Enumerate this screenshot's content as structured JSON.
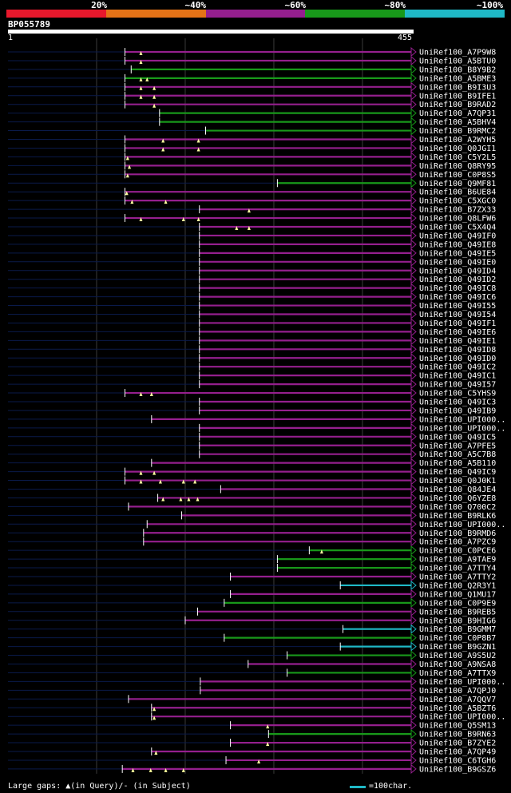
{
  "header": {
    "query_id": "BP055789",
    "ruler_start": "1",
    "ruler_end": "455",
    "legend": [
      {
        "label": "",
        "color": "#e8182c"
      },
      {
        "label": "20%",
        "color": "#e57317"
      },
      {
        "label": "~40%",
        "color": "#951f8e"
      },
      {
        "label": "~60%",
        "color": "#18981a"
      },
      {
        "label": "~80%",
        "color": "#1fb8c6"
      }
    ],
    "legend_labels": [
      "20%",
      "~40%",
      "~60%",
      "~80%",
      "~100%"
    ]
  },
  "footer": {
    "gaps_text": "Large gaps: ▲(in Query)/- (in Subject)",
    "scale_text": "=100char."
  },
  "chart_data": {
    "type": "alignment",
    "query_length": 455,
    "colors": {
      "purple": "#951f8e",
      "green": "#18981a",
      "cyan": "#1fb8c6",
      "navy": "#0a1a4a"
    },
    "hits": [
      {
        "name": "UniRef100_A7P9W8",
        "start": 132,
        "color": "purple",
        "gaps": [
          150
        ]
      },
      {
        "name": "UniRef100_A5BTU0",
        "start": 132,
        "color": "purple",
        "gaps": [
          150
        ]
      },
      {
        "name": "UniRef100_B8Y9B2",
        "start": 139,
        "color": "green",
        "gaps": []
      },
      {
        "name": "UniRef100_A5BME3",
        "start": 132,
        "color": "green",
        "gaps": [
          150,
          157
        ]
      },
      {
        "name": "UniRef100_B9I3U3",
        "start": 132,
        "color": "purple",
        "gaps": [
          150,
          165
        ]
      },
      {
        "name": "UniRef100_B9IFE1",
        "start": 132,
        "color": "purple",
        "gaps": [
          150,
          165
        ]
      },
      {
        "name": "UniRef100_B9RAD2",
        "start": 132,
        "color": "purple",
        "gaps": [
          165
        ]
      },
      {
        "name": "UniRef100_A7QP31",
        "start": 171,
        "color": "green",
        "gaps": []
      },
      {
        "name": "UniRef100_A5BHV4",
        "start": 171,
        "color": "green",
        "gaps": []
      },
      {
        "name": "UniRef100_B9RMC2",
        "start": 223,
        "color": "green",
        "gaps": []
      },
      {
        "name": "UniRef100_A2WYH5",
        "start": 132,
        "color": "purple",
        "gaps": [
          175,
          215
        ]
      },
      {
        "name": "UniRef100_Q0JGI1",
        "start": 132,
        "color": "purple",
        "gaps": [
          175,
          215
        ]
      },
      {
        "name": "UniRef100_C5Y2L5",
        "start": 132,
        "color": "purple",
        "gaps": [
          135
        ]
      },
      {
        "name": "UniRef100_Q8RY95",
        "start": 132,
        "color": "purple",
        "gaps": [
          137
        ]
      },
      {
        "name": "UniRef100_C0P8S5",
        "start": 132,
        "color": "purple",
        "gaps": [
          135
        ]
      },
      {
        "name": "UniRef100_Q9MF81",
        "start": 304,
        "color": "green",
        "gaps": []
      },
      {
        "name": "UniRef100_B6UE84",
        "start": 132,
        "color": "purple",
        "gaps": [
          134
        ]
      },
      {
        "name": "UniRef100_C5XGC0",
        "start": 132,
        "color": "purple",
        "gaps": [
          140,
          178
        ]
      },
      {
        "name": "UniRef100_B7ZX33",
        "start": 216,
        "color": "purple",
        "gaps": [
          272
        ]
      },
      {
        "name": "UniRef100_Q8LFW6",
        "start": 132,
        "color": "purple",
        "gaps": [
          150,
          198,
          215
        ]
      },
      {
        "name": "UniRef100_C5X4Q4",
        "start": 216,
        "color": "purple",
        "gaps": [
          258,
          272
        ]
      },
      {
        "name": "UniRef100_Q49IF0",
        "start": 216,
        "color": "purple",
        "gaps": []
      },
      {
        "name": "UniRef100_Q49IE8",
        "start": 216,
        "color": "purple",
        "gaps": []
      },
      {
        "name": "UniRef100_Q49IE5",
        "start": 216,
        "color": "purple",
        "gaps": []
      },
      {
        "name": "UniRef100_Q49IE0",
        "start": 216,
        "color": "purple",
        "gaps": []
      },
      {
        "name": "UniRef100_Q49ID4",
        "start": 216,
        "color": "purple",
        "gaps": []
      },
      {
        "name": "UniRef100_Q49ID2",
        "start": 216,
        "color": "purple",
        "gaps": []
      },
      {
        "name": "UniRef100_Q49IC8",
        "start": 216,
        "color": "purple",
        "gaps": []
      },
      {
        "name": "UniRef100_Q49IC6",
        "start": 216,
        "color": "purple",
        "gaps": []
      },
      {
        "name": "UniRef100_Q49I55",
        "start": 216,
        "color": "purple",
        "gaps": []
      },
      {
        "name": "UniRef100_Q49I54",
        "start": 216,
        "color": "purple",
        "gaps": []
      },
      {
        "name": "UniRef100_Q49IF1",
        "start": 216,
        "color": "purple",
        "gaps": []
      },
      {
        "name": "UniRef100_Q49IE6",
        "start": 216,
        "color": "purple",
        "gaps": []
      },
      {
        "name": "UniRef100_Q49IE1",
        "start": 216,
        "color": "purple",
        "gaps": []
      },
      {
        "name": "UniRef100_Q49ID8",
        "start": 216,
        "color": "purple",
        "gaps": []
      },
      {
        "name": "UniRef100_Q49ID0",
        "start": 216,
        "color": "purple",
        "gaps": []
      },
      {
        "name": "UniRef100_Q49IC2",
        "start": 216,
        "color": "purple",
        "gaps": []
      },
      {
        "name": "UniRef100_Q49IC1",
        "start": 216,
        "color": "purple",
        "gaps": []
      },
      {
        "name": "UniRef100_Q49I57",
        "start": 216,
        "color": "purple",
        "gaps": []
      },
      {
        "name": "UniRef100_C5YHS9",
        "start": 132,
        "color": "purple",
        "gaps": [
          150,
          162
        ]
      },
      {
        "name": "UniRef100_Q49IC3",
        "start": 216,
        "color": "purple",
        "gaps": []
      },
      {
        "name": "UniRef100_Q49IB9",
        "start": 216,
        "color": "purple",
        "gaps": []
      },
      {
        "name": "UniRef100_UPI000..",
        "start": 162,
        "color": "purple",
        "gaps": []
      },
      {
        "name": "UniRef100_UPI000..",
        "start": 216,
        "color": "purple",
        "gaps": []
      },
      {
        "name": "UniRef100_Q49IC5",
        "start": 216,
        "color": "purple",
        "gaps": []
      },
      {
        "name": "UniRef100_A7PFE5",
        "start": 216,
        "color": "purple",
        "gaps": []
      },
      {
        "name": "UniRef100_A5C7B8",
        "start": 216,
        "color": "purple",
        "gaps": []
      },
      {
        "name": "UniRef100_A5B110",
        "start": 162,
        "color": "purple",
        "gaps": []
      },
      {
        "name": "UniRef100_Q49IC9",
        "start": 132,
        "color": "purple",
        "gaps": [
          150,
          165
        ]
      },
      {
        "name": "UniRef100_Q0J0K1",
        "start": 132,
        "color": "purple",
        "gaps": [
          150,
          172,
          198,
          211
        ]
      },
      {
        "name": "UniRef100_Q84JE4",
        "start": 240,
        "color": "purple",
        "gaps": []
      },
      {
        "name": "UniRef100_Q6YZE8",
        "start": 169,
        "color": "purple",
        "gaps": [
          175,
          195,
          204,
          214
        ]
      },
      {
        "name": "UniRef100_Q700C2",
        "start": 136,
        "color": "purple",
        "gaps": []
      },
      {
        "name": "UniRef100_B9RLK6",
        "start": 196,
        "color": "purple",
        "gaps": []
      },
      {
        "name": "UniRef100_UPI000..",
        "start": 157,
        "color": "purple",
        "gaps": []
      },
      {
        "name": "UniRef100_B9RMD6",
        "start": 153,
        "color": "purple",
        "gaps": []
      },
      {
        "name": "UniRef100_A7PZC9",
        "start": 153,
        "color": "purple",
        "gaps": []
      },
      {
        "name": "UniRef100_C0PCE6",
        "start": 340,
        "color": "green",
        "gaps": [
          354
        ]
      },
      {
        "name": "UniRef100_A9TAE9",
        "start": 304,
        "color": "green",
        "gaps": []
      },
      {
        "name": "UniRef100_A7TTY4",
        "start": 304,
        "color": "green",
        "gaps": []
      },
      {
        "name": "UniRef100_A7TTY2",
        "start": 251,
        "color": "purple",
        "gaps": []
      },
      {
        "name": "UniRef100_Q2R3Y1",
        "start": 375,
        "color": "cyan",
        "gaps": []
      },
      {
        "name": "UniRef100_Q1MU17",
        "start": 251,
        "color": "purple",
        "gaps": []
      },
      {
        "name": "UniRef100_C0P9E9",
        "start": 244,
        "color": "green",
        "gaps": []
      },
      {
        "name": "UniRef100_B9REB5",
        "start": 214,
        "color": "purple",
        "gaps": []
      },
      {
        "name": "UniRef100_B9HIG6",
        "start": 200,
        "color": "purple",
        "gaps": []
      },
      {
        "name": "UniRef100_B9GMM7",
        "start": 378,
        "color": "cyan",
        "gaps": []
      },
      {
        "name": "UniRef100_C0P8B7",
        "start": 244,
        "color": "green",
        "gaps": []
      },
      {
        "name": "UniRef100_B9GZN1",
        "start": 375,
        "color": "cyan",
        "gaps": []
      },
      {
        "name": "UniRef100_A9S5U2",
        "start": 315,
        "color": "green",
        "gaps": []
      },
      {
        "name": "UniRef100_A9NSA8",
        "start": 271,
        "color": "purple",
        "gaps": []
      },
      {
        "name": "UniRef100_A7TTX9",
        "start": 315,
        "color": "green",
        "gaps": []
      },
      {
        "name": "UniRef100_UPI000..",
        "start": 217,
        "color": "purple",
        "gaps": []
      },
      {
        "name": "UniRef100_A7QPJ0",
        "start": 217,
        "color": "purple",
        "gaps": []
      },
      {
        "name": "UniRef100_A7QQV7",
        "start": 136,
        "color": "purple",
        "gaps": []
      },
      {
        "name": "UniRef100_A5BZT6",
        "start": 162,
        "color": "purple",
        "gaps": [
          165
        ]
      },
      {
        "name": "UniRef100_UPI000..",
        "start": 162,
        "color": "purple",
        "gaps": [
          165
        ]
      },
      {
        "name": "UniRef100_Q5SM13",
        "start": 251,
        "color": "purple",
        "gaps": [
          293
        ]
      },
      {
        "name": "UniRef100_B9RN63",
        "start": 294,
        "color": "green",
        "gaps": []
      },
      {
        "name": "UniRef100_B7ZYE2",
        "start": 251,
        "color": "purple",
        "gaps": [
          293
        ]
      },
      {
        "name": "UniRef100_A7QP49",
        "start": 162,
        "color": "purple",
        "gaps": [
          167
        ]
      },
      {
        "name": "UniRef100_C6TGH6",
        "start": 246,
        "color": "purple",
        "gaps": [
          283
        ]
      },
      {
        "name": "UniRef100_B9GSZ6",
        "start": 129,
        "color": "purple",
        "gaps": [
          141,
          161,
          178,
          198
        ]
      }
    ]
  }
}
